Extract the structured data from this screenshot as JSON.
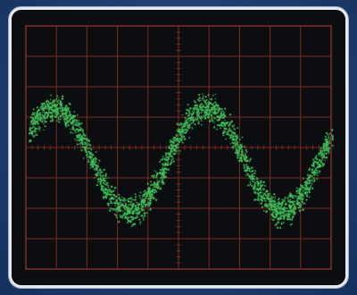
{
  "colors": {
    "background": "#1f3f74",
    "bezel_border": "#e6eaf0",
    "screen": "#0b0d10",
    "grid": "#7a2a24",
    "trace": "#3fbf5a"
  },
  "oscilloscope": {
    "grid_divisions_x": 10,
    "grid_divisions_y": 8,
    "waveform": {
      "type": "sine",
      "cycles_visible": 2.0,
      "noise": "high"
    }
  }
}
